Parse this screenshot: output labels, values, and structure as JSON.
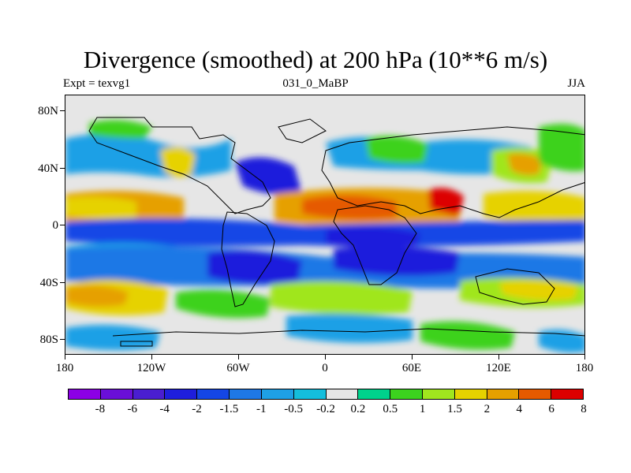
{
  "title": "Divergence (smoothed) at 200 hPa (10**6 m/s)",
  "subtitle_left": "Expt = texvg1",
  "subtitle_center": "031_0_MaBP",
  "subtitle_right": "JJA",
  "chart_data": {
    "type": "heatmap",
    "title": "Divergence (smoothed) at 200 hPa (10**6 m/s)",
    "experiment": "texvg1",
    "run": "031_0_MaBP",
    "season": "JJA",
    "units": "10**6 m/s",
    "x_range": [
      -180,
      180
    ],
    "y_range": [
      -90,
      90
    ],
    "x_ticks": [
      {
        "value": -180,
        "label": "180"
      },
      {
        "value": -120,
        "label": "120W"
      },
      {
        "value": -60,
        "label": "60W"
      },
      {
        "value": 0,
        "label": "0"
      },
      {
        "value": 60,
        "label": "60E"
      },
      {
        "value": 120,
        "label": "120E"
      },
      {
        "value": 180,
        "label": "180"
      }
    ],
    "y_ticks": [
      {
        "value": 80,
        "label": "80N"
      },
      {
        "value": 40,
        "label": "40N"
      },
      {
        "value": 0,
        "label": "0"
      },
      {
        "value": -40,
        "label": "40S"
      },
      {
        "value": -80,
        "label": "80S"
      }
    ],
    "levels": [
      -8,
      -6,
      -4,
      -2,
      -1.5,
      -1,
      -0.5,
      -0.2,
      0.2,
      0.5,
      1,
      1.5,
      2,
      4,
      6,
      8
    ],
    "level_labels": [
      "-8",
      "-6",
      "-4",
      "-2",
      "-1.5",
      "-1",
      "-0.5",
      "-0.2",
      "0.2",
      "0.5",
      "1",
      "1.5",
      "2",
      "4",
      "6",
      "8"
    ],
    "colors": [
      "#8c00e6",
      "#6a0fd8",
      "#4a1ed0",
      "#1e1edc",
      "#1446e6",
      "#1e78e6",
      "#1ea0e6",
      "#14bedc",
      "#e6e6e6",
      "#00d28c",
      "#3cd21e",
      "#a0e61e",
      "#e6d200",
      "#e6a000",
      "#e65a00",
      "#dc0000"
    ],
    "features": [
      {
        "lat_band": [
          -5,
          5
        ],
        "description": "equatorial band of strong convergence",
        "approx_value": -4
      },
      {
        "lat_band": [
          -30,
          -15
        ],
        "description": "southern subtropical convergence",
        "approx_value": -2
      },
      {
        "lat_band": [
          5,
          25
        ],
        "description": "northern tropical divergence maxima over Africa, India and Asia",
        "approx_value": 6
      },
      {
        "lat_band": [
          -45,
          -30
        ],
        "description": "southern mid-latitude divergence",
        "approx_value": 1.5
      },
      {
        "lat_band": [
          35,
          65
        ],
        "description": "northern mid-latitude mixed patterns",
        "approx_value": 0.5
      }
    ]
  }
}
